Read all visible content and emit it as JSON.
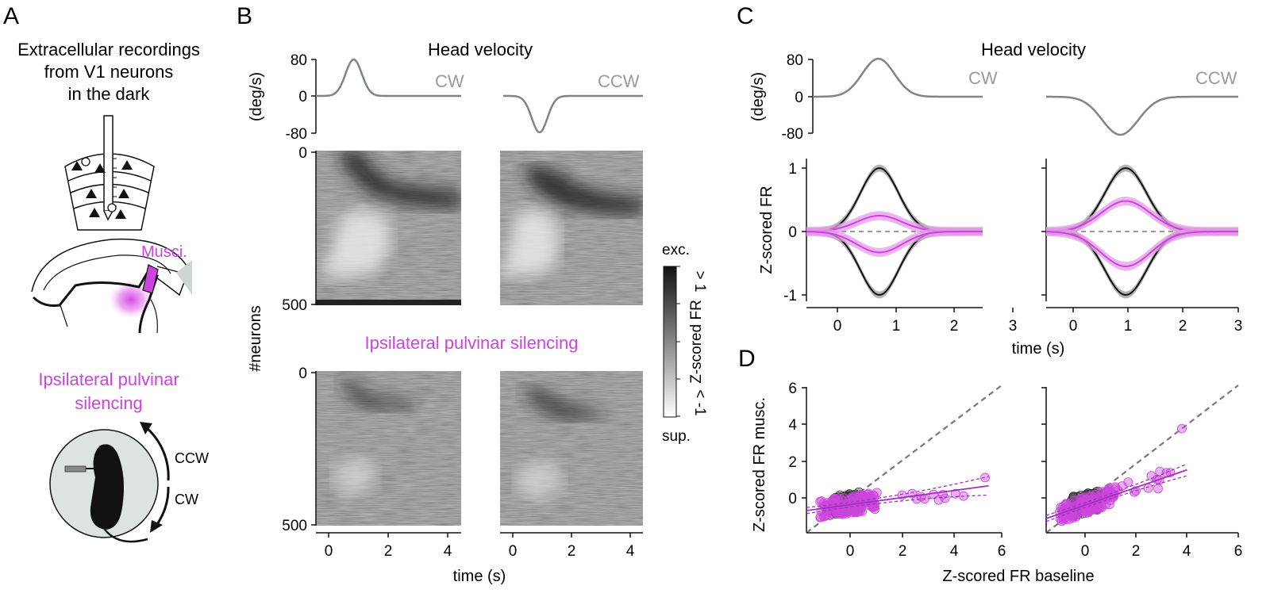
{
  "panel_labels": {
    "a": "A",
    "b": "B",
    "c": "C",
    "d": "D"
  },
  "panel_a": {
    "title_lines": [
      "Extracellular recordings",
      "from V1 neurons",
      "in the dark"
    ],
    "musci_label": "Musci.",
    "silencing_lines": [
      "Ipsilateral pulvinar",
      "silencing"
    ],
    "rotation_ccw": "CCW",
    "rotation_cw": "CW",
    "colors": {
      "magenta": "#cc44dd",
      "gray_disc": "#dde2e2",
      "mouse": "#111111"
    }
  },
  "panel_b": {
    "head_velocity_title": "Head velocity",
    "cw_label": "CW",
    "ccw_label": "CCW",
    "velocity_ylabel": "(deg/s)",
    "velocity_ticks": [
      "80",
      "0",
      "-80"
    ],
    "neuron_ticks_top": [
      "0",
      "500"
    ],
    "neuron_ticks_bottom": [
      "0",
      "500"
    ],
    "neurons_ylabel": "#neurons",
    "silencing_label": "Ipsilateral pulvinar silencing",
    "xticks": [
      "0",
      "2",
      "4"
    ],
    "xlabel": "time (s)",
    "colorbar": {
      "top": "exc.",
      "bottom": "sup.",
      "label": "Z-scored FR",
      "max_tick": "> 1",
      "min_tick": "< -1"
    }
  },
  "panel_c": {
    "head_velocity_title": "Head velocity",
    "cw_label": "CW",
    "ccw_label": "CCW",
    "velocity_ylabel": "(deg/s)",
    "velocity_ticks": [
      "80",
      "0",
      "-80"
    ],
    "fr_ylabel": "Z-scored FR",
    "fr_yticks": [
      "1",
      "0",
      "-1"
    ],
    "xticks": [
      "0",
      "1",
      "2",
      "3"
    ],
    "xlabel": "time (s)"
  },
  "panel_d": {
    "ylabel": "Z-scored FR musc.",
    "xlabel": "Z-scored FR baseline",
    "yticks": [
      "6",
      "4",
      "2",
      "0"
    ],
    "xticks": [
      "0",
      "2",
      "4",
      "6"
    ]
  },
  "colors": {
    "magenta": "#cc44dd",
    "magenta_fill": "#e69be9",
    "gray": "#7f8585",
    "black": "#111111",
    "dashed": "#777777"
  },
  "chart_data": [
    {
      "type": "line",
      "id": "C-CW",
      "title": "Head velocity (CW)",
      "xlabel": "time (s)",
      "ylabel": "Z-scored FR",
      "xlim": [
        -0.5,
        3
      ],
      "ylim": [
        -1.1,
        1.1
      ],
      "series": [
        {
          "name": "excited baseline",
          "color": "#111111",
          "peak": 1.0
        },
        {
          "name": "suppressed baseline",
          "color": "#111111",
          "peak": -1.0
        },
        {
          "name": "excited musc.",
          "color": "#cc44dd",
          "peak": 0.25
        },
        {
          "name": "suppressed musc.",
          "color": "#cc44dd",
          "peak": -0.33
        }
      ]
    },
    {
      "type": "line",
      "id": "C-CCW",
      "title": "Head velocity (CCW)",
      "xlabel": "time (s)",
      "ylabel": "Z-scored FR",
      "xlim": [
        -0.5,
        3
      ],
      "ylim": [
        -1.1,
        1.1
      ],
      "series": [
        {
          "name": "excited baseline",
          "color": "#111111",
          "peak": 1.0
        },
        {
          "name": "suppressed baseline",
          "color": "#111111",
          "peak": -1.0
        },
        {
          "name": "excited musc.",
          "color": "#cc44dd",
          "peak": 0.48
        },
        {
          "name": "suppressed musc.",
          "color": "#cc44dd",
          "peak": -0.55
        }
      ]
    },
    {
      "type": "scatter",
      "id": "D-CW",
      "xlabel": "Z-scored FR baseline",
      "ylabel": "Z-scored FR musc.",
      "xlim": [
        -1.5,
        6
      ],
      "ylim": [
        -1.5,
        6
      ],
      "fit": {
        "slope": 0.18,
        "intercept": -0.1,
        "x_range": [
          -1.5,
          5.5
        ]
      }
    },
    {
      "type": "scatter",
      "id": "D-CCW",
      "xlabel": "Z-scored FR baseline",
      "ylabel": "Z-scored FR musc.",
      "xlim": [
        -1.5,
        6
      ],
      "ylim": [
        -1.5,
        6
      ],
      "fit": {
        "slope": 0.45,
        "intercept": -0.1,
        "x_range": [
          -1.5,
          4
        ]
      }
    }
  ]
}
